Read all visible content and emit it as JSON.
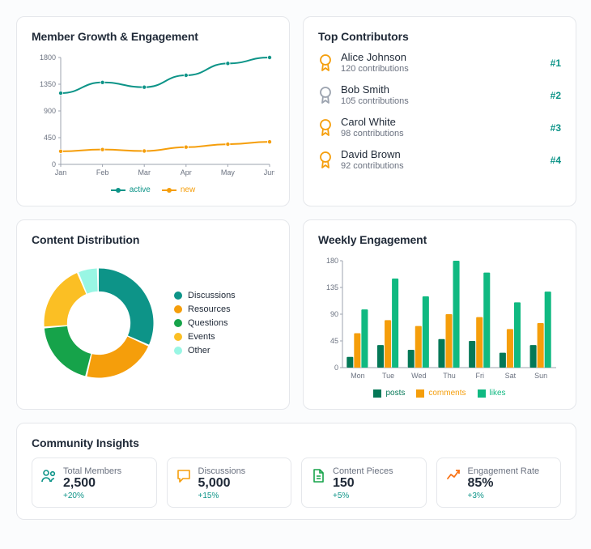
{
  "colors": {
    "teal": "#0d9488",
    "green": "#16a34a",
    "orange": "#f59e0b",
    "emerald": "#10b981",
    "mint": "#99f6e4",
    "darkGreen": "#047857",
    "yellow": "#fbbf24",
    "grid": "#e5e7eb",
    "axis": "#6b7280"
  },
  "growth": {
    "title": "Member Growth & Engagement",
    "type": "line",
    "xLabels": [
      "Jan",
      "Feb",
      "Mar",
      "Apr",
      "May",
      "Jun"
    ],
    "yTicks": [
      0,
      450,
      900,
      1350,
      1800
    ],
    "series": [
      {
        "name": "active",
        "color": "#0d9488",
        "lineWidth": 2,
        "marker": "circle",
        "values": [
          1200,
          1380,
          1300,
          1500,
          1700,
          1800
        ]
      },
      {
        "name": "new",
        "color": "#f59e0b",
        "lineWidth": 2,
        "marker": "circle",
        "values": [
          220,
          250,
          225,
          290,
          340,
          380
        ]
      }
    ]
  },
  "contributors": {
    "title": "Top Contributors",
    "items": [
      {
        "name": "Alice Johnson",
        "sub": "120 contributions",
        "rank": "#1",
        "color": "#f59e0b"
      },
      {
        "name": "Bob Smith",
        "sub": "105 contributions",
        "rank": "#2",
        "color": "#9ca3af"
      },
      {
        "name": "Carol White",
        "sub": "98 contributions",
        "rank": "#3",
        "color": "#f59e0b"
      },
      {
        "name": "David Brown",
        "sub": "92 contributions",
        "rank": "#4",
        "color": "#f59e0b"
      }
    ]
  },
  "distribution": {
    "title": "Content Distribution",
    "type": "donut",
    "innerRatio": 0.58,
    "slices": [
      {
        "label": "Discussions",
        "value": 32,
        "color": "#0d9488"
      },
      {
        "label": "Resources",
        "value": 22,
        "color": "#f59e0b"
      },
      {
        "label": "Questions",
        "value": 20,
        "color": "#16a34a"
      },
      {
        "label": "Events",
        "value": 20,
        "color": "#fbbf24"
      },
      {
        "label": "Other",
        "value": 6,
        "color": "#99f6e4"
      }
    ]
  },
  "weekly": {
    "title": "Weekly Engagement",
    "type": "grouped-bar",
    "xLabels": [
      "Mon",
      "Tue",
      "Wed",
      "Thu",
      "Fri",
      "Sat",
      "Sun"
    ],
    "yTicks": [
      0,
      45,
      90,
      135,
      180
    ],
    "ymax": 180,
    "series": [
      {
        "name": "posts",
        "color": "#047857",
        "values": [
          18,
          38,
          30,
          48,
          45,
          25,
          38
        ]
      },
      {
        "name": "comments",
        "color": "#f59e0b",
        "values": [
          58,
          80,
          70,
          90,
          85,
          65,
          75
        ]
      },
      {
        "name": "likes",
        "color": "#10b981",
        "values": [
          98,
          150,
          120,
          180,
          160,
          110,
          128
        ]
      }
    ],
    "barGroupWidth": 0.72
  },
  "insights": {
    "title": "Community Insights",
    "items": [
      {
        "label": "Total Members",
        "value": "2,500",
        "trend": "+20%",
        "icon": "users",
        "iconColor": "#0d9488"
      },
      {
        "label": "Discussions",
        "value": "5,000",
        "trend": "+15%",
        "icon": "message",
        "iconColor": "#f59e0b"
      },
      {
        "label": "Content Pieces",
        "value": "150",
        "trend": "+5%",
        "icon": "file",
        "iconColor": "#16a34a"
      },
      {
        "label": "Engagement Rate",
        "value": "85%",
        "trend": "+3%",
        "icon": "trend",
        "iconColor": "#f97316"
      }
    ]
  }
}
